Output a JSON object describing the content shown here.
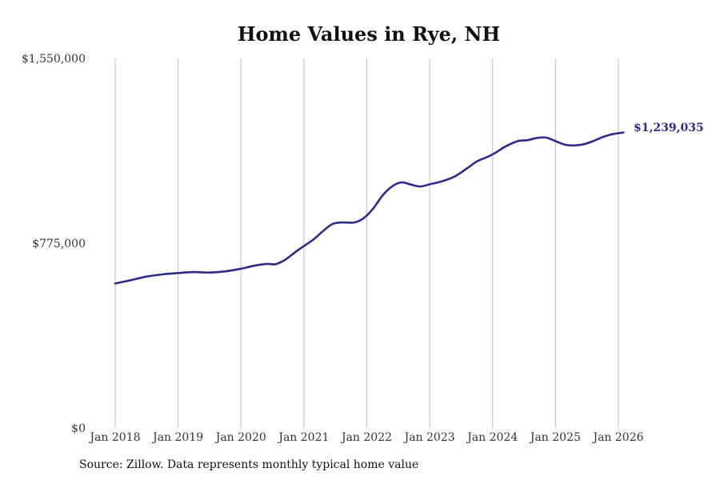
{
  "source_note": "Source: Zillow. Data represents monthly typical home value",
  "colors": {
    "series": "#2e2a8c",
    "grid": "#bdbdbd",
    "text": "#333333"
  },
  "chart_data": {
    "type": "line",
    "title": "Home Values in Rye, NH",
    "xlabel": "",
    "ylabel": "",
    "ylim": [
      0,
      1550000
    ],
    "y_ticks": [
      0,
      775000,
      1550000
    ],
    "y_tick_labels": [
      "$0",
      "$775,000",
      "$1,550,000"
    ],
    "x_range": [
      2018.0,
      2026.0833
    ],
    "x_ticks": [
      2018,
      2019,
      2020,
      2021,
      2022,
      2023,
      2024,
      2025,
      2026
    ],
    "x_tick_labels": [
      "Jan 2018",
      "Jan 2019",
      "Jan 2020",
      "Jan 2021",
      "Jan 2022",
      "Jan 2023",
      "Jan 2024",
      "Jan 2025",
      "Jan 2026"
    ],
    "grid": "vertical",
    "end_label": "$1,239,035",
    "series": [
      {
        "name": "Typical home value",
        "points": [
          [
            2018.0,
            606000
          ],
          [
            2018.25,
            620000
          ],
          [
            2018.5,
            635000
          ],
          [
            2018.75,
            644000
          ],
          [
            2019.0,
            650000
          ],
          [
            2019.25,
            654000
          ],
          [
            2019.5,
            652000
          ],
          [
            2019.75,
            657000
          ],
          [
            2020.0,
            668000
          ],
          [
            2020.2,
            680000
          ],
          [
            2020.4,
            688000
          ],
          [
            2020.55,
            687000
          ],
          [
            2020.7,
            705000
          ],
          [
            2020.85,
            735000
          ],
          [
            2021.0,
            763000
          ],
          [
            2021.15,
            790000
          ],
          [
            2021.3,
            825000
          ],
          [
            2021.45,
            855000
          ],
          [
            2021.6,
            862000
          ],
          [
            2021.8,
            862000
          ],
          [
            2021.95,
            880000
          ],
          [
            2022.1,
            920000
          ],
          [
            2022.25,
            975000
          ],
          [
            2022.4,
            1013000
          ],
          [
            2022.55,
            1030000
          ],
          [
            2022.7,
            1021000
          ],
          [
            2022.85,
            1013000
          ],
          [
            2023.0,
            1022000
          ],
          [
            2023.2,
            1035000
          ],
          [
            2023.4,
            1055000
          ],
          [
            2023.6,
            1090000
          ],
          [
            2023.75,
            1118000
          ],
          [
            2023.9,
            1135000
          ],
          [
            2024.05,
            1155000
          ],
          [
            2024.2,
            1180000
          ],
          [
            2024.4,
            1203000
          ],
          [
            2024.55,
            1207000
          ],
          [
            2024.7,
            1216000
          ],
          [
            2024.85,
            1218000
          ],
          [
            2025.0,
            1203000
          ],
          [
            2025.15,
            1188000
          ],
          [
            2025.3,
            1185000
          ],
          [
            2025.45,
            1190000
          ],
          [
            2025.6,
            1203000
          ],
          [
            2025.75,
            1220000
          ],
          [
            2025.9,
            1232000
          ],
          [
            2026.08,
            1239035
          ]
        ]
      }
    ]
  }
}
